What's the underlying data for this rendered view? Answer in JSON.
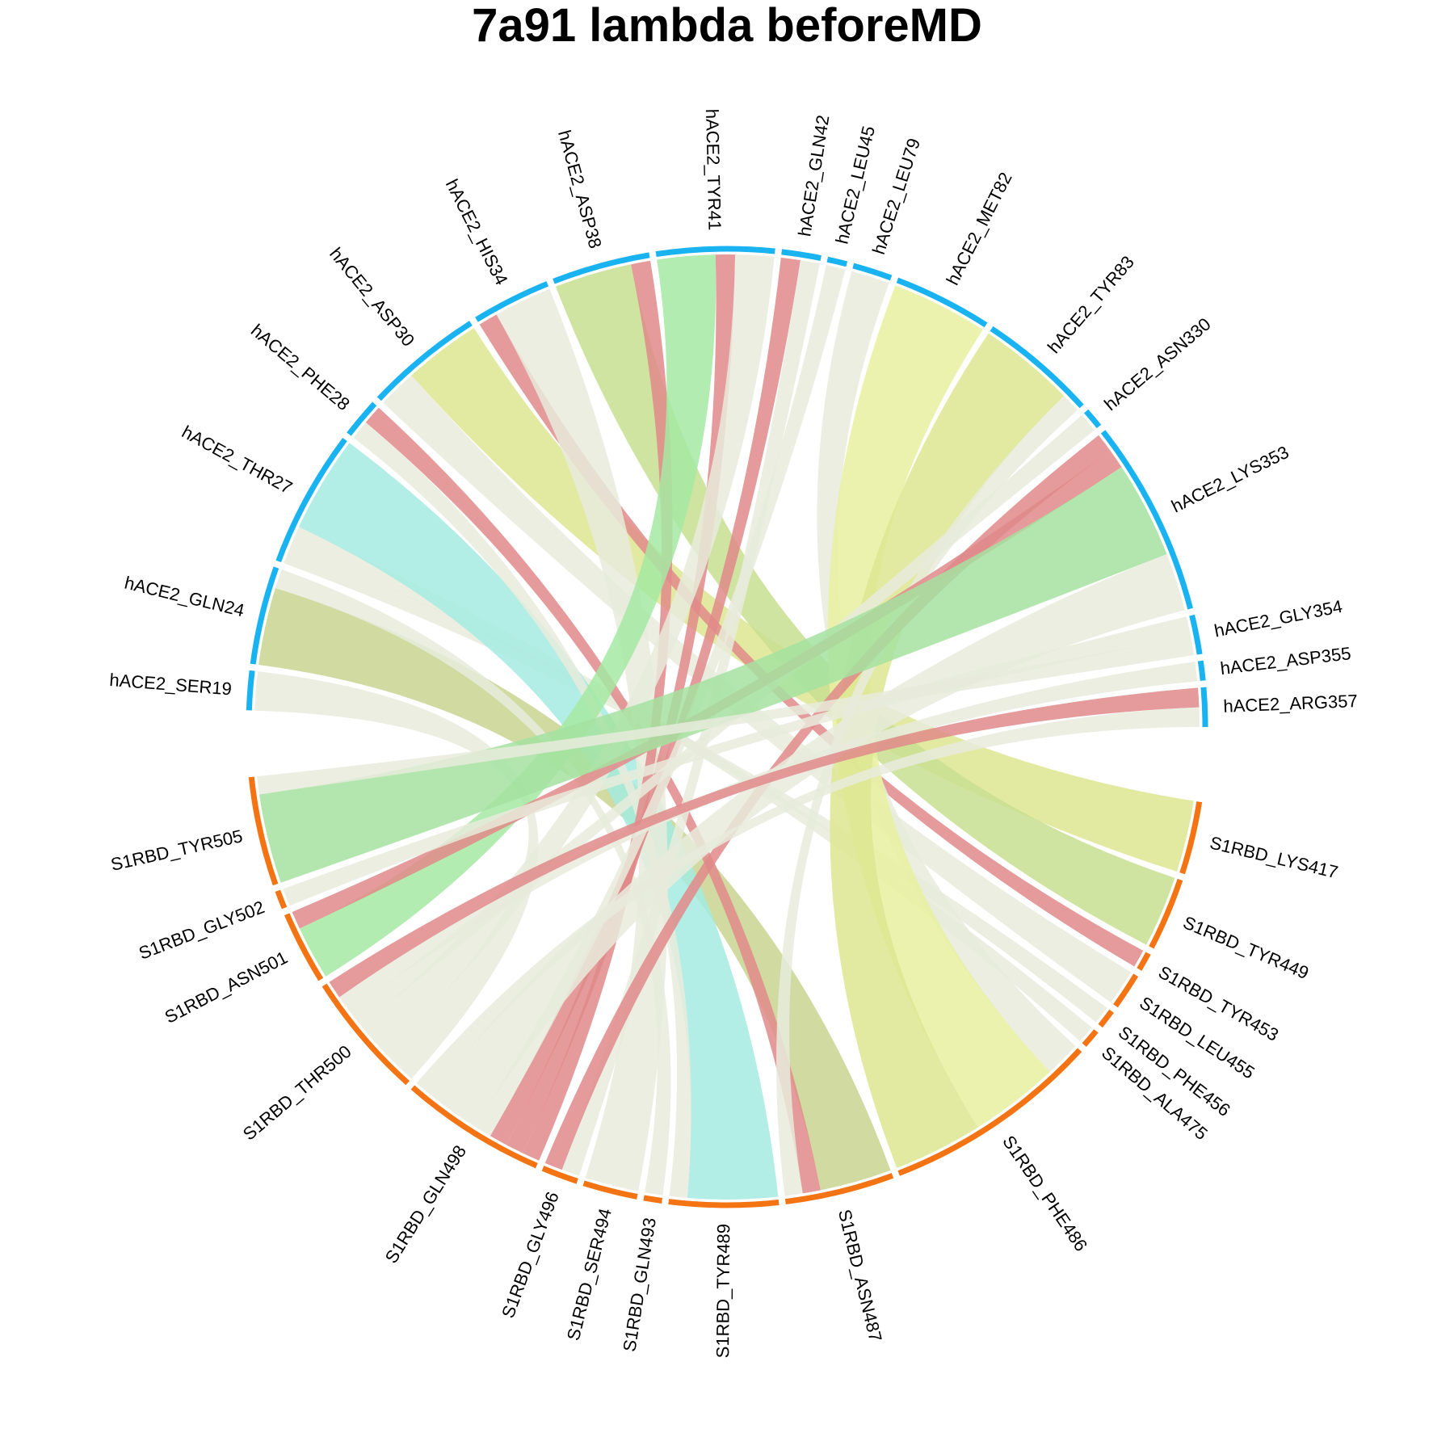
{
  "chart_data": {
    "type": "chord",
    "title": "7a91 lambda beforeMD",
    "groups": [
      {
        "name": "hACE2",
        "color": "#1ab3f2"
      },
      {
        "name": "S1RBD",
        "color": "#f47414"
      }
    ],
    "nodes": [
      {
        "id": "hACE2_SER19",
        "group": "hACE2"
      },
      {
        "id": "hACE2_GLN24",
        "group": "hACE2"
      },
      {
        "id": "hACE2_THR27",
        "group": "hACE2"
      },
      {
        "id": "hACE2_PHE28",
        "group": "hACE2"
      },
      {
        "id": "hACE2_ASP30",
        "group": "hACE2"
      },
      {
        "id": "hACE2_HIS34",
        "group": "hACE2"
      },
      {
        "id": "hACE2_ASP38",
        "group": "hACE2"
      },
      {
        "id": "hACE2_TYR41",
        "group": "hACE2"
      },
      {
        "id": "hACE2_GLN42",
        "group": "hACE2"
      },
      {
        "id": "hACE2_LEU45",
        "group": "hACE2"
      },
      {
        "id": "hACE2_LEU79",
        "group": "hACE2"
      },
      {
        "id": "hACE2_MET82",
        "group": "hACE2"
      },
      {
        "id": "hACE2_TYR83",
        "group": "hACE2"
      },
      {
        "id": "hACE2_ASN330",
        "group": "hACE2"
      },
      {
        "id": "hACE2_LYS353",
        "group": "hACE2"
      },
      {
        "id": "hACE2_GLY354",
        "group": "hACE2"
      },
      {
        "id": "hACE2_ASP355",
        "group": "hACE2"
      },
      {
        "id": "hACE2_ARG357",
        "group": "hACE2"
      },
      {
        "id": "S1RBD_LYS417",
        "group": "S1RBD"
      },
      {
        "id": "S1RBD_TYR449",
        "group": "S1RBD"
      },
      {
        "id": "S1RBD_TYR453",
        "group": "S1RBD"
      },
      {
        "id": "S1RBD_LEU455",
        "group": "S1RBD"
      },
      {
        "id": "S1RBD_PHE456",
        "group": "S1RBD"
      },
      {
        "id": "S1RBD_ALA475",
        "group": "S1RBD"
      },
      {
        "id": "S1RBD_PHE486",
        "group": "S1RBD"
      },
      {
        "id": "S1RBD_ASN487",
        "group": "S1RBD"
      },
      {
        "id": "S1RBD_TYR489",
        "group": "S1RBD"
      },
      {
        "id": "S1RBD_GLN493",
        "group": "S1RBD"
      },
      {
        "id": "S1RBD_SER494",
        "group": "S1RBD"
      },
      {
        "id": "S1RBD_GLY496",
        "group": "S1RBD"
      },
      {
        "id": "S1RBD_GLN498",
        "group": "S1RBD"
      },
      {
        "id": "S1RBD_THR500",
        "group": "S1RBD"
      },
      {
        "id": "S1RBD_ASN501",
        "group": "S1RBD"
      },
      {
        "id": "S1RBD_GLY502",
        "group": "S1RBD"
      },
      {
        "id": "S1RBD_TYR505",
        "group": "S1RBD"
      }
    ],
    "links": [
      {
        "source": "hACE2_SER19",
        "target": "S1RBD_THR500",
        "value": 2,
        "color": "#e8ebdc"
      },
      {
        "source": "hACE2_GLN24",
        "target": "S1RBD_ASN487",
        "value": 4,
        "color": "#c8d490"
      },
      {
        "source": "hACE2_GLN24",
        "target": "S1RBD_GLN493",
        "value": 1,
        "color": "#e8ebdc"
      },
      {
        "source": "hACE2_THR27",
        "target": "S1RBD_PHE456",
        "value": 1,
        "color": "#e8ebdc"
      },
      {
        "source": "hACE2_THR27",
        "target": "S1RBD_ALA475",
        "value": 1,
        "color": "#e8ebdc"
      },
      {
        "source": "hACE2_THR27",
        "target": "S1RBD_TYR489",
        "value": 5,
        "color": "#a4ebe0"
      },
      {
        "source": "hACE2_PHE28",
        "target": "S1RBD_TYR489",
        "value": 1,
        "color": "#e8ebdc"
      },
      {
        "source": "hACE2_PHE28",
        "target": "S1RBD_ASN487",
        "value": 1,
        "color": "#e08a8a"
      },
      {
        "source": "hACE2_ASP30",
        "target": "S1RBD_LEU455",
        "value": 2,
        "color": "#e8ebdc"
      },
      {
        "source": "hACE2_ASP30",
        "target": "S1RBD_LYS417",
        "value": 4,
        "color": "#dde691"
      },
      {
        "source": "hACE2_HIS34",
        "target": "S1RBD_TYR453",
        "value": 1,
        "color": "#e08a8a"
      },
      {
        "source": "hACE2_HIS34",
        "target": "S1RBD_SER494",
        "value": 3,
        "color": "#e8ebdc"
      },
      {
        "source": "hACE2_ASP38",
        "target": "S1RBD_TYR449",
        "value": 4,
        "color": "#c8df90"
      },
      {
        "source": "hACE2_ASP38",
        "target": "S1RBD_GLN498",
        "value": 1,
        "color": "#e08a8a"
      },
      {
        "source": "hACE2_TYR41",
        "target": "S1RBD_ASN501",
        "value": 3,
        "color": "#a4e9a2"
      },
      {
        "source": "hACE2_TYR41",
        "target": "S1RBD_GLN498",
        "value": 1,
        "color": "#e08a8a"
      },
      {
        "source": "hACE2_TYR41",
        "target": "S1RBD_THR500",
        "value": 2,
        "color": "#e8ebdc"
      },
      {
        "source": "hACE2_GLN42",
        "target": "S1RBD_GLN498",
        "value": 1,
        "color": "#e08a8a"
      },
      {
        "source": "hACE2_GLN42",
        "target": "S1RBD_GLY496",
        "value": 1,
        "color": "#e8ebdc"
      },
      {
        "source": "hACE2_LEU45",
        "target": "S1RBD_GLN498",
        "value": 1,
        "color": "#e8ebdc"
      },
      {
        "source": "hACE2_LEU79",
        "target": "S1RBD_PHE486",
        "value": 2,
        "color": "#e8ebdc"
      },
      {
        "source": "hACE2_MET82",
        "target": "S1RBD_PHE486",
        "value": 5,
        "color": "#e8f0a0"
      },
      {
        "source": "hACE2_TYR83",
        "target": "S1RBD_PHE486",
        "value": 5,
        "color": "#dde691"
      },
      {
        "source": "hACE2_TYR83",
        "target": "S1RBD_ASN487",
        "value": 1,
        "color": "#e8ebdc"
      },
      {
        "source": "hACE2_ASN330",
        "target": "S1RBD_THR500",
        "value": 1,
        "color": "#e8ebdc"
      },
      {
        "source": "hACE2_LYS353",
        "target": "S1RBD_GLY496",
        "value": 1,
        "color": "#e08a8a"
      },
      {
        "source": "hACE2_LYS353",
        "target": "S1RBD_ASN501",
        "value": 1,
        "color": "#e08a8a"
      },
      {
        "source": "hACE2_LYS353",
        "target": "S1RBD_TYR505",
        "value": 5,
        "color": "#a4e2a0"
      },
      {
        "source": "hACE2_LYS353",
        "target": "S1RBD_GLN498",
        "value": 3,
        "color": "#e8ebdc"
      },
      {
        "source": "hACE2_GLY354",
        "target": "S1RBD_GLY502",
        "value": 1,
        "color": "#e8ebdc"
      },
      {
        "source": "hACE2_GLY354",
        "target": "S1RBD_TYR505",
        "value": 1,
        "color": "#e8ebdc"
      },
      {
        "source": "hACE2_ASP355",
        "target": "S1RBD_THR500",
        "value": 1,
        "color": "#e8ebdc"
      },
      {
        "source": "hACE2_ARG357",
        "target": "S1RBD_THR500",
        "value": 1,
        "color": "#e08a8a"
      },
      {
        "source": "hACE2_ARG357",
        "target": "S1RBD_GLN498",
        "value": 1,
        "color": "#e8ebdc"
      }
    ]
  }
}
